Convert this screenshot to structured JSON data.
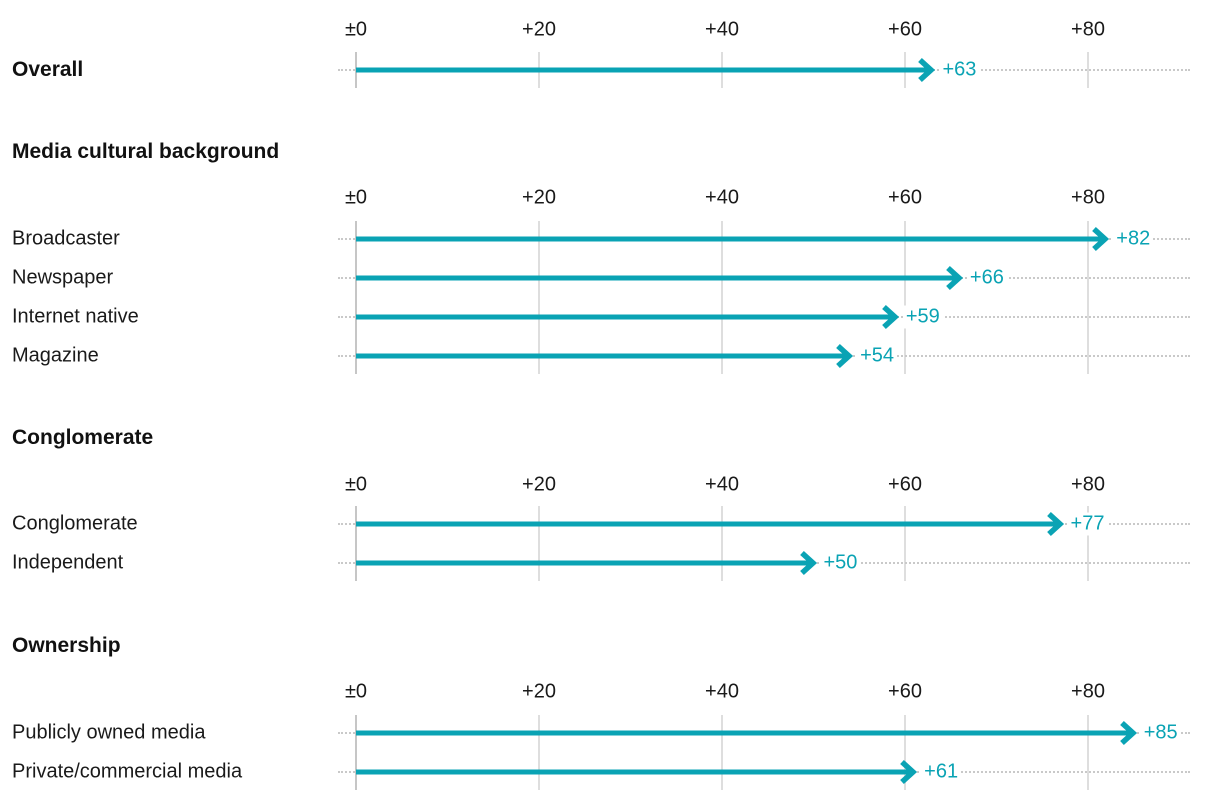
{
  "chart_data": {
    "type": "bar",
    "orientation": "horizontal",
    "title": "",
    "xlabel": "",
    "ylabel": "",
    "accent_color": "#0aa3b4",
    "axis": {
      "ticks": [
        "±0",
        "+20",
        "+40",
        "+60",
        "+80"
      ],
      "tick_values": [
        0,
        20,
        40,
        60,
        80
      ],
      "xlim": [
        0,
        91
      ],
      "grid": true,
      "repeated_per_section": true
    },
    "sections": [
      {
        "title": "",
        "rows": [
          {
            "label": "Overall",
            "value": 63,
            "display": "+63",
            "bold": true
          }
        ]
      },
      {
        "title": "Media cultural background",
        "rows": [
          {
            "label": "Broadcaster",
            "value": 82,
            "display": "+82",
            "bold": false
          },
          {
            "label": "Newspaper",
            "value": 66,
            "display": "+66",
            "bold": false
          },
          {
            "label": "Internet native",
            "value": 59,
            "display": "+59",
            "bold": false
          },
          {
            "label": "Magazine",
            "value": 54,
            "display": "+54",
            "bold": false
          }
        ]
      },
      {
        "title": "Conglomerate",
        "rows": [
          {
            "label": "Conglomerate",
            "value": 77,
            "display": "+77",
            "bold": false
          },
          {
            "label": "Independent",
            "value": 50,
            "display": "+50",
            "bold": false
          }
        ]
      },
      {
        "title": "Ownership",
        "rows": [
          {
            "label": "Publicly owned media",
            "value": 85,
            "display": "+85",
            "bold": false
          },
          {
            "label": "Private/commercial media",
            "value": 61,
            "display": "+61",
            "bold": false
          }
        ]
      }
    ]
  }
}
